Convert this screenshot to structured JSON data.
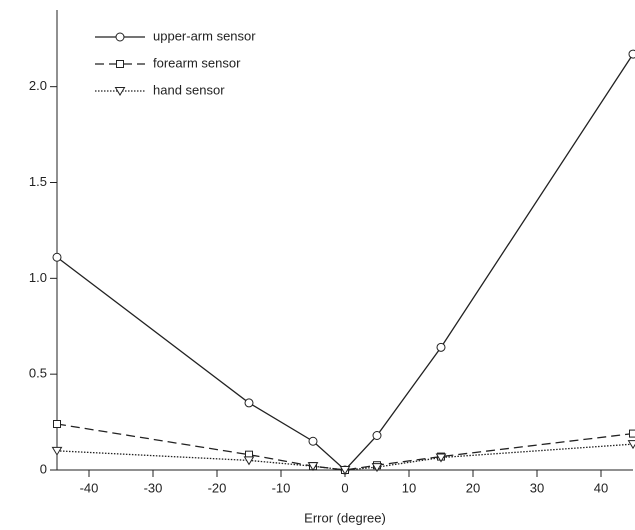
{
  "chart_data": {
    "type": "line",
    "xlabel": "Error (degree)",
    "xlim": [
      -45,
      45
    ],
    "ylim": [
      0,
      2.4
    ],
    "xticks": [
      -40,
      -30,
      -20,
      -10,
      0,
      10,
      20,
      30,
      40
    ],
    "yticks": [
      0,
      0.5,
      {
        "value": 1,
        "label": "1.0"
      },
      1.5,
      {
        "value": 2,
        "label": "2.0"
      }
    ],
    "legend": "upper left",
    "series": [
      {
        "name": "upper-arm sensor",
        "color": "#222222",
        "marker": "circle",
        "line_style": "solid",
        "x": [
          -45,
          -15,
          -5,
          0,
          5,
          15,
          45
        ],
        "values": [
          1.11,
          0.35,
          0.15,
          0,
          0.18,
          0.64,
          2.17
        ]
      },
      {
        "name": "forearm sensor",
        "color": "#222222",
        "marker": "square",
        "line_style": "dashed",
        "x": [
          -45,
          -15,
          -5,
          0,
          5,
          15,
          45
        ],
        "values": [
          0.24,
          0.08,
          0.02,
          0,
          0.025,
          0.07,
          0.19
        ]
      },
      {
        "name": "hand sensor",
        "color": "#222222",
        "marker": "triangle-down",
        "line_style": "dotted",
        "x": [
          -45,
          -15,
          -5,
          0,
          5,
          15,
          45
        ],
        "values": [
          0.1,
          0.05,
          0.02,
          0,
          0.015,
          0.065,
          0.135
        ]
      }
    ]
  }
}
